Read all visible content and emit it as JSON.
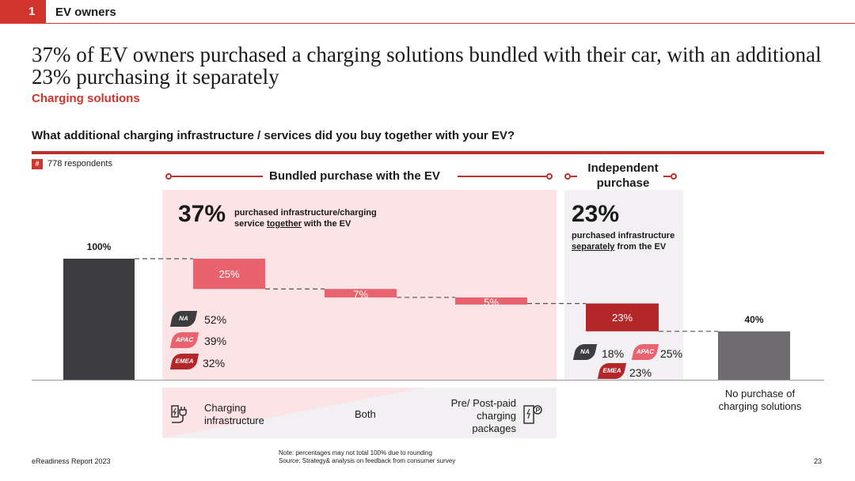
{
  "header": {
    "section_number": "1",
    "section_title": "EV owners"
  },
  "headline": "37% of EV owners purchased a charging solutions bundled with their car, with an additional 23% purchasing it separately",
  "subtitle": "Charging solutions",
  "question": "What additional charging infrastructure / services did you buy together with your EV?",
  "respondents": {
    "hash": "#",
    "text": "778 respondents"
  },
  "bundle": {
    "title": "Bundled purchase with the EV",
    "big_value": "37%",
    "desc_before": "purchased infrastructure/charging service ",
    "desc_underlined": "together",
    "desc_after": " with the EV"
  },
  "independent": {
    "title": "Independent purchase",
    "big_value": "23%",
    "desc_before": "purchased infrastructure ",
    "desc_underlined": "separately",
    "desc_after": " from the EV"
  },
  "regions_bundle": [
    {
      "name": "NA",
      "value": "52%",
      "color": "#3d3d3f"
    },
    {
      "name": "APAC",
      "value": "39%",
      "color": "#e8636e"
    },
    {
      "name": "EMEA",
      "value": "32%",
      "color": "#b3262a"
    }
  ],
  "regions_independent": [
    {
      "name": "NA",
      "value": "18%",
      "color": "#3d3d3f"
    },
    {
      "name": "APAC",
      "value": "25%",
      "color": "#e8636e"
    },
    {
      "name": "EMEA",
      "value": "23%",
      "color": "#b3262a"
    }
  ],
  "legend": {
    "charging_infrastructure": "Charging infrastructure",
    "both": "Both",
    "prepaid": "Pre/ Post-paid charging packages",
    "icon_left": "ev-charger-icon",
    "icon_right": "charging-card-icon"
  },
  "chart_data": {
    "type": "bar",
    "subtype": "waterfall",
    "categories": [
      "",
      "",
      "",
      "",
      "",
      "No purchase of charging solutions"
    ],
    "values": [
      100,
      25,
      7,
      5,
      23,
      40
    ],
    "labels": [
      "100%",
      "25%",
      "7%",
      "5%",
      "23%",
      "40%"
    ],
    "ylim": [
      0,
      100
    ],
    "colors": [
      "#3d3d3f",
      "#e8636e",
      "#e8636e",
      "#e8636e",
      "#b3262a",
      "#6e6c70"
    ]
  },
  "footer": {
    "report": "eReadiness Report 2023",
    "note": "Note: percentages may not total 100% due to rounding",
    "source": "Source: Strategy& analysis on feedback from consumer survey",
    "page": "23"
  }
}
